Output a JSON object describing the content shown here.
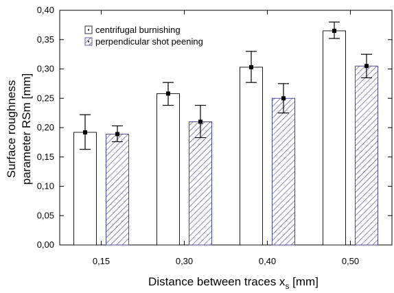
{
  "chart_data": {
    "type": "bar",
    "categories": [
      "0,15",
      "0,30",
      "0,40",
      "0,50"
    ],
    "series": [
      {
        "name": "centrifugal burnishing",
        "values": [
          0.192,
          0.258,
          0.303,
          0.365
        ],
        "error_low": [
          0.163,
          0.238,
          0.277,
          0.352
        ],
        "error_high": [
          0.222,
          0.277,
          0.33,
          0.38
        ],
        "fill": "#ffffff",
        "pattern": "none"
      },
      {
        "name": "perpendicular shot peening",
        "values": [
          0.189,
          0.21,
          0.25,
          0.305
        ],
        "error_low": [
          0.176,
          0.183,
          0.225,
          0.285
        ],
        "error_high": [
          0.203,
          0.238,
          0.275,
          0.325
        ],
        "fill": "#ffffff",
        "pattern": "diagonal-hatch"
      }
    ],
    "ylim": [
      0,
      0.4
    ],
    "yticks": [
      "0,00",
      "0,05",
      "0,10",
      "0,15",
      "0,20",
      "0,25",
      "0,30",
      "0,35",
      "0,40"
    ],
    "ylabel_line1": "Surface roughness",
    "ylabel_line2": "parameter RSm [mm]",
    "xlabel_main": "Distance between traces x",
    "xlabel_sub": "s",
    "xlabel_unit": " [mm]",
    "legend_position": "top-left",
    "grid": false,
    "colors": {
      "axis": "#000000",
      "hatch": "#3a3a8c",
      "marker": "#000000"
    }
  }
}
